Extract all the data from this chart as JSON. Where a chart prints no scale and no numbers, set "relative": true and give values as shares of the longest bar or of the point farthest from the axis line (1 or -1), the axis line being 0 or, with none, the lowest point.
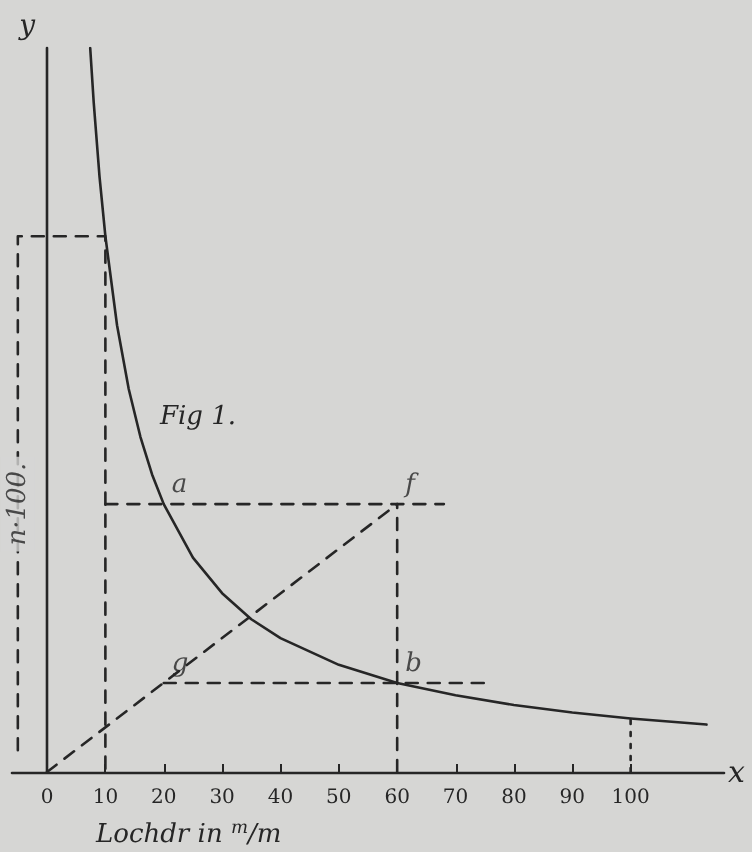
{
  "chart_data": {
    "type": "line",
    "xlabel": "x",
    "ylabel": "y",
    "relative": true,
    "grid": false,
    "marker": "none",
    "xlim": [
      -6,
      116
    ],
    "xticks": [
      0,
      10,
      20,
      30,
      40,
      50,
      60,
      70,
      80,
      90,
      100
    ],
    "series": [
      {
        "color": "#262626",
        "line_style": "solid",
        "x": [
          7.4,
          8,
          9,
          10,
          12,
          14,
          16,
          18,
          20,
          25,
          30,
          35,
          40,
          50,
          60,
          70,
          80,
          90,
          100,
          113
        ],
        "values": [
          1,
          0.925,
          0.822,
          0.74,
          0.617,
          0.529,
          0.463,
          0.411,
          0.37,
          0.296,
          0.247,
          0.211,
          0.185,
          0.148,
          0.123,
          0.106,
          0.0925,
          0.0822,
          0.074,
          0.0655
        ]
      },
      {
        "color": "#262626",
        "line_style": "dashed",
        "x": [
          -5,
          -5,
          10,
          10
        ],
        "values": [
          0.03,
          0.74,
          0.74,
          0
        ]
      },
      {
        "color": "#262626",
        "line_style": "dashed",
        "x": [
          10,
          68
        ],
        "values": [
          0.37,
          0.37
        ]
      },
      {
        "color": "#262626",
        "line_style": "dashed",
        "x": [
          60,
          60
        ],
        "values": [
          0,
          0.37
        ]
      },
      {
        "color": "#262626",
        "line_style": "dashed",
        "x": [
          20,
          75
        ],
        "values": [
          0.123,
          0.123
        ]
      },
      {
        "color": "#262626",
        "line_style": "dashed",
        "x": [
          0,
          60
        ],
        "values": [
          0,
          0.37
        ]
      },
      {
        "color": "#262626",
        "line_style": "dotted",
        "x": [
          100,
          100
        ],
        "values": [
          0,
          0.074
        ]
      }
    ],
    "annotations": [
      "Lochdr in $^{m}$/m",
      "Fig 1.",
      {
        "text": "n·100.",
        "x": -5,
        "y": 0.37
      },
      {
        "text": "a",
        "x": 20,
        "y": 0.37
      },
      {
        "text": "f",
        "x": 60,
        "y": 0.37
      },
      {
        "text": "g",
        "x": 20,
        "y": 0.123
      },
      {
        "text": "b",
        "x": 60,
        "y": 0.123
      }
    ]
  }
}
